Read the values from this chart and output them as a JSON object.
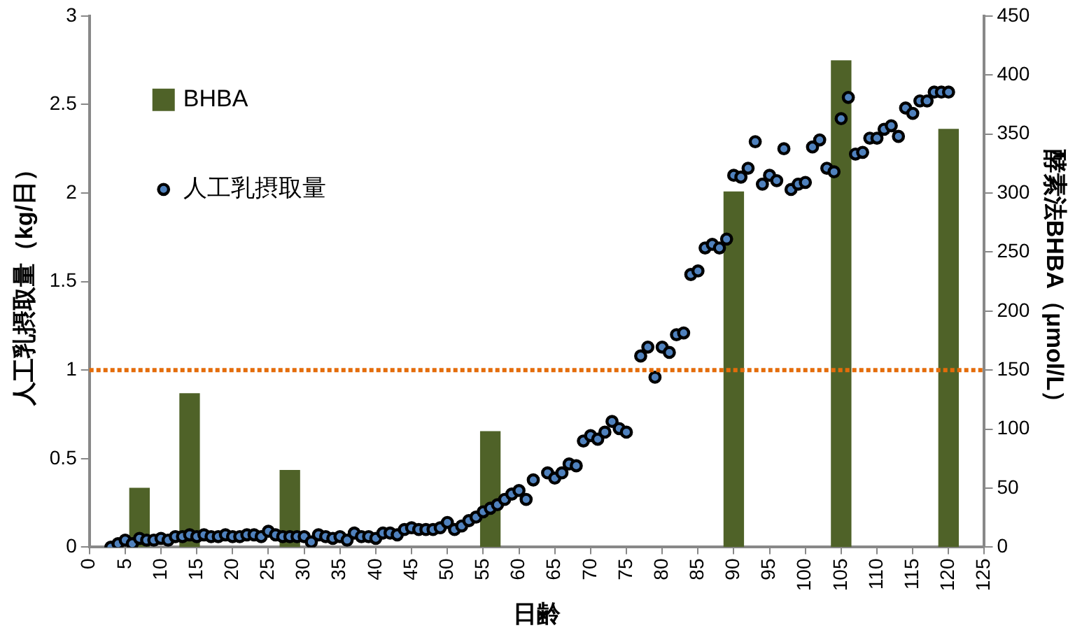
{
  "chart_data": {
    "type": "scatter",
    "xlabel": "日齢",
    "ylabel": "人工乳摂取量（kg/日）",
    "y2label": "酵素法BHBA（μmol/L）",
    "xlim": [
      0,
      125
    ],
    "xticks": [
      0,
      5,
      10,
      15,
      20,
      25,
      30,
      35,
      40,
      45,
      50,
      55,
      60,
      65,
      70,
      75,
      80,
      85,
      90,
      95,
      100,
      105,
      110,
      115,
      120,
      125
    ],
    "ylim": [
      0,
      3
    ],
    "yticks": [
      0,
      0.5,
      1,
      1.5,
      2,
      2.5,
      3
    ],
    "y2lim": [
      0,
      450
    ],
    "y2ticks": [
      0,
      50,
      100,
      150,
      200,
      250,
      300,
      350,
      400,
      450
    ],
    "grid": false,
    "legend": "top left",
    "series": [
      {
        "name": "BHBA",
        "type": "bar",
        "axis": "y2",
        "color": "#4f6228",
        "x": [
          7,
          14,
          28,
          56,
          90,
          105,
          120
        ],
        "values": [
          50,
          130,
          65,
          98,
          301,
          412,
          354
        ]
      },
      {
        "name": "人工乳摂取量",
        "marker": "circle",
        "color": "#4f81bd",
        "x": [
          3,
          4,
          5,
          6,
          7,
          8,
          9,
          10,
          11,
          12,
          13,
          14,
          15,
          16,
          17,
          18,
          19,
          20,
          21,
          22,
          23,
          24,
          25,
          26,
          27,
          28,
          29,
          30,
          31,
          32,
          33,
          34,
          35,
          36,
          37,
          38,
          39,
          40,
          41,
          42,
          43,
          44,
          45,
          46,
          47,
          48,
          49,
          50,
          51,
          52,
          53,
          54,
          55,
          56,
          57,
          58,
          59,
          60,
          61,
          62,
          64,
          65,
          66,
          67,
          68,
          69,
          70,
          71,
          72,
          73,
          74,
          75,
          77,
          78,
          79,
          80,
          81,
          82,
          83,
          84,
          85,
          86,
          87,
          88,
          89,
          90,
          91,
          92,
          93,
          94,
          95,
          96,
          97,
          98,
          99,
          100,
          101,
          102,
          103,
          104,
          105,
          106,
          107,
          108,
          109,
          110,
          111,
          112,
          113,
          114,
          115,
          116,
          117,
          118,
          119,
          120
        ],
        "values": [
          0,
          0.02,
          0.04,
          0.02,
          0.05,
          0.04,
          0.04,
          0.05,
          0.04,
          0.06,
          0.06,
          0.07,
          0.06,
          0.07,
          0.06,
          0.06,
          0.07,
          0.06,
          0.06,
          0.07,
          0.07,
          0.06,
          0.09,
          0.07,
          0.06,
          0.06,
          0.06,
          0.06,
          0.03,
          0.07,
          0.06,
          0.05,
          0.06,
          0.04,
          0.08,
          0.06,
          0.06,
          0.05,
          0.08,
          0.08,
          0.07,
          0.1,
          0.11,
          0.1,
          0.1,
          0.1,
          0.11,
          0.14,
          0.1,
          0.12,
          0.15,
          0.17,
          0.2,
          0.22,
          0.24,
          0.27,
          0.3,
          0.32,
          0.27,
          0.38,
          0.42,
          0.39,
          0.42,
          0.47,
          0.46,
          0.6,
          0.63,
          0.61,
          0.65,
          0.71,
          0.67,
          0.65,
          1.08,
          1.13,
          0.96,
          1.13,
          1.1,
          1.2,
          1.21,
          1.54,
          1.56,
          1.69,
          1.71,
          1.69,
          1.74,
          2.1,
          2.09,
          2.14,
          2.29,
          2.05,
          2.1,
          2.07,
          2.25,
          2.02,
          2.05,
          2.06,
          2.26,
          2.3,
          2.14,
          2.12,
          2.42,
          2.54,
          2.22,
          2.23,
          2.31,
          2.31,
          2.36,
          2.38,
          2.32,
          2.48,
          2.45,
          2.52,
          2.52,
          2.57,
          2.57,
          2.57
        ]
      }
    ],
    "ref_lines": [
      {
        "axis": "y",
        "value": 1,
        "color": "#e46c0a",
        "line_style": "dotted"
      }
    ]
  }
}
